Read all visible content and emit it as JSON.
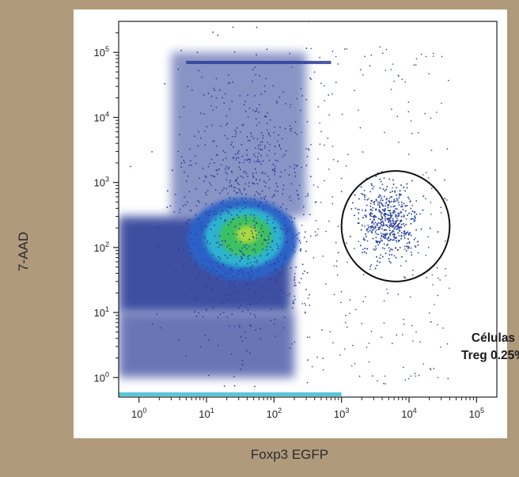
{
  "chart_data": {
    "type": "scatter",
    "subtype": "flow-cytometry-density-plot",
    "xlabel": "Foxp3 EGFP",
    "ylabel": "7-AAD",
    "xscale": "log",
    "yscale": "log",
    "xlim": [
      0.5,
      200000
    ],
    "ylim": [
      0.5,
      300000
    ],
    "x_ticks": [
      {
        "base": "10",
        "exp": "0",
        "value": 1
      },
      {
        "base": "10",
        "exp": "1",
        "value": 10
      },
      {
        "base": "10",
        "exp": "2",
        "value": 100
      },
      {
        "base": "10",
        "exp": "3",
        "value": 1000
      },
      {
        "base": "10",
        "exp": "4",
        "value": 10000
      },
      {
        "base": "10",
        "exp": "5",
        "value": 100000
      }
    ],
    "y_ticks": [
      {
        "base": "10",
        "exp": "0",
        "value": 1
      },
      {
        "base": "10",
        "exp": "1",
        "value": 10
      },
      {
        "base": "10",
        "exp": "2",
        "value": 100
      },
      {
        "base": "10",
        "exp": "3",
        "value": 1000
      },
      {
        "base": "10",
        "exp": "4",
        "value": 10000
      },
      {
        "base": "10",
        "exp": "5",
        "value": 100000
      }
    ],
    "populations": [
      {
        "label": "main-negative-population",
        "x_center": 40,
        "y_center": 150
      },
      {
        "label": "treg-gated-population",
        "x_center": 5000,
        "y_center": 250
      }
    ],
    "gate": {
      "shape": "ellipse",
      "x_range": [
        1000,
        40000
      ],
      "y_range": [
        30,
        1500
      ]
    },
    "annotation": {
      "line1": "Células",
      "line2": "Treg 0.25%"
    },
    "grid": false,
    "colors": {
      "sparse": "#2a3c98",
      "medium": "#2b64c8",
      "dense": "#2fb8d0",
      "core": "#3cc25a",
      "peak": "#b6dc3c",
      "background": "#b09a7c",
      "gate": "#111111"
    }
  }
}
